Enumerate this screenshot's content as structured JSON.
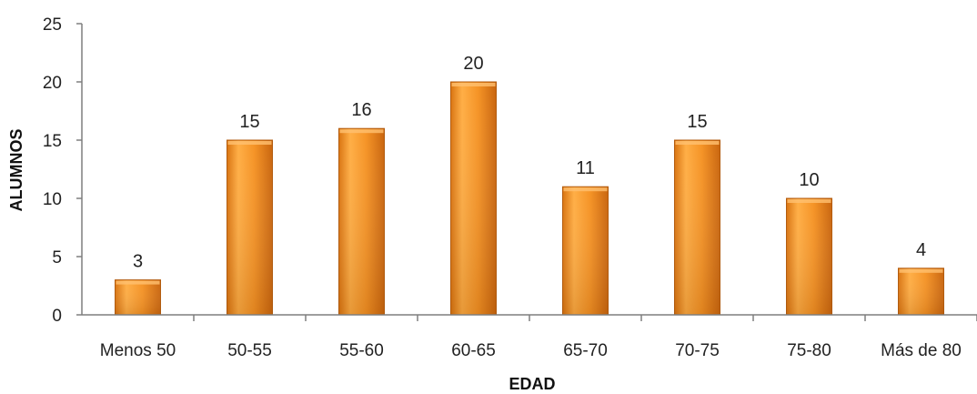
{
  "chart_data": {
    "type": "bar",
    "categories": [
      "Menos 50",
      "50-55",
      "55-60",
      "60-65",
      "65-70",
      "70-75",
      "75-80",
      "Más de 80"
    ],
    "values": [
      3,
      15,
      16,
      20,
      11,
      15,
      10,
      4
    ],
    "data_labels": [
      "3",
      "15",
      "16",
      "20",
      "11",
      "15",
      "10",
      "4"
    ],
    "y_ticks": [
      0,
      5,
      10,
      15,
      20,
      25
    ],
    "ylim": [
      0,
      25
    ],
    "xlabel": "EDAD",
    "ylabel": "ALUMNOS",
    "grid": false,
    "legend": "none",
    "colors": {
      "bar_light": "#ffb04a",
      "bar_mid": "#f28a1e",
      "bar_dark": "#c96410",
      "axis": "#7f7f7f"
    }
  }
}
